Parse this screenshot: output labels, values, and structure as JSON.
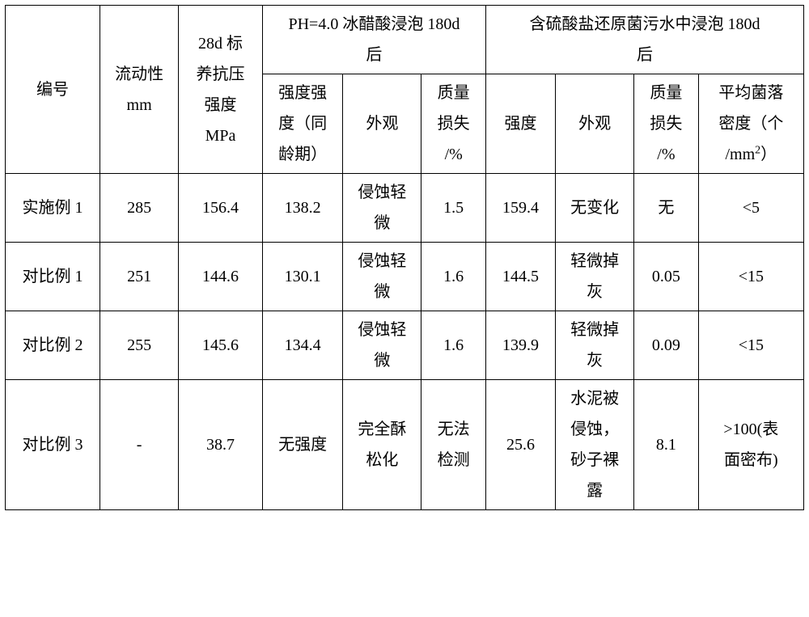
{
  "table": {
    "header": {
      "c0": "编号",
      "c1_l1": "流动性",
      "c1_l2": "mm",
      "c2_l1": "28d 标",
      "c2_l2": "养抗压",
      "c2_l3": "强度",
      "c2_l4": "MPa",
      "g1": "PH=4.0 冰醋酸浸泡 180d",
      "g1b": "后",
      "g2": "含硫酸盐还原菌污水中浸泡 180d",
      "g2b": "后",
      "c3_l1": "强度强",
      "c3_l2": "度（同",
      "c3_l3": "龄期）",
      "c4": "外观",
      "c5_l1": "质量",
      "c5_l2": "损失",
      "c5_l3": "/%",
      "c6": "强度",
      "c7": "外观",
      "c8_l1": "质量",
      "c8_l2": "损失",
      "c8_l3": "/%",
      "c9_l1": "平均菌落",
      "c9_l2": "密度（个",
      "c9_l3a": "/mm",
      "c9_l3b": "）"
    },
    "rows": [
      {
        "c0": "实施例 1",
        "c1": "285",
        "c2": "156.4",
        "c3": "138.2",
        "c4a": "侵蚀轻",
        "c4b": "微",
        "c5": "1.5",
        "c6": "159.4",
        "c7": "无变化",
        "c8": "无",
        "c9": "<5"
      },
      {
        "c0": "对比例 1",
        "c1": "251",
        "c2": "144.6",
        "c3": "130.1",
        "c4a": "侵蚀轻",
        "c4b": "微",
        "c5": "1.6",
        "c6": "144.5",
        "c7a": "轻微掉",
        "c7b": "灰",
        "c8": "0.05",
        "c9": "<15"
      },
      {
        "c0": "对比例 2",
        "c1": "255",
        "c2": "145.6",
        "c3": "134.4",
        "c4a": "侵蚀轻",
        "c4b": "微",
        "c5": "1.6",
        "c6": "139.9",
        "c7a": "轻微掉",
        "c7b": "灰",
        "c8": "0.09",
        "c9": "<15"
      },
      {
        "c0": "对比例 3",
        "c1": "-",
        "c2": "38.7",
        "c3": "无强度",
        "c4a": "完全酥",
        "c4b": "松化",
        "c5a": "无法",
        "c5b": "检测",
        "c6": "25.6",
        "c7a": "水泥被",
        "c7b": "侵蚀，",
        "c7c": "砂子裸",
        "c7d": "露",
        "c8": "8.1",
        "c9a": ">100(表",
        "c9b": "面密布)"
      }
    ]
  }
}
